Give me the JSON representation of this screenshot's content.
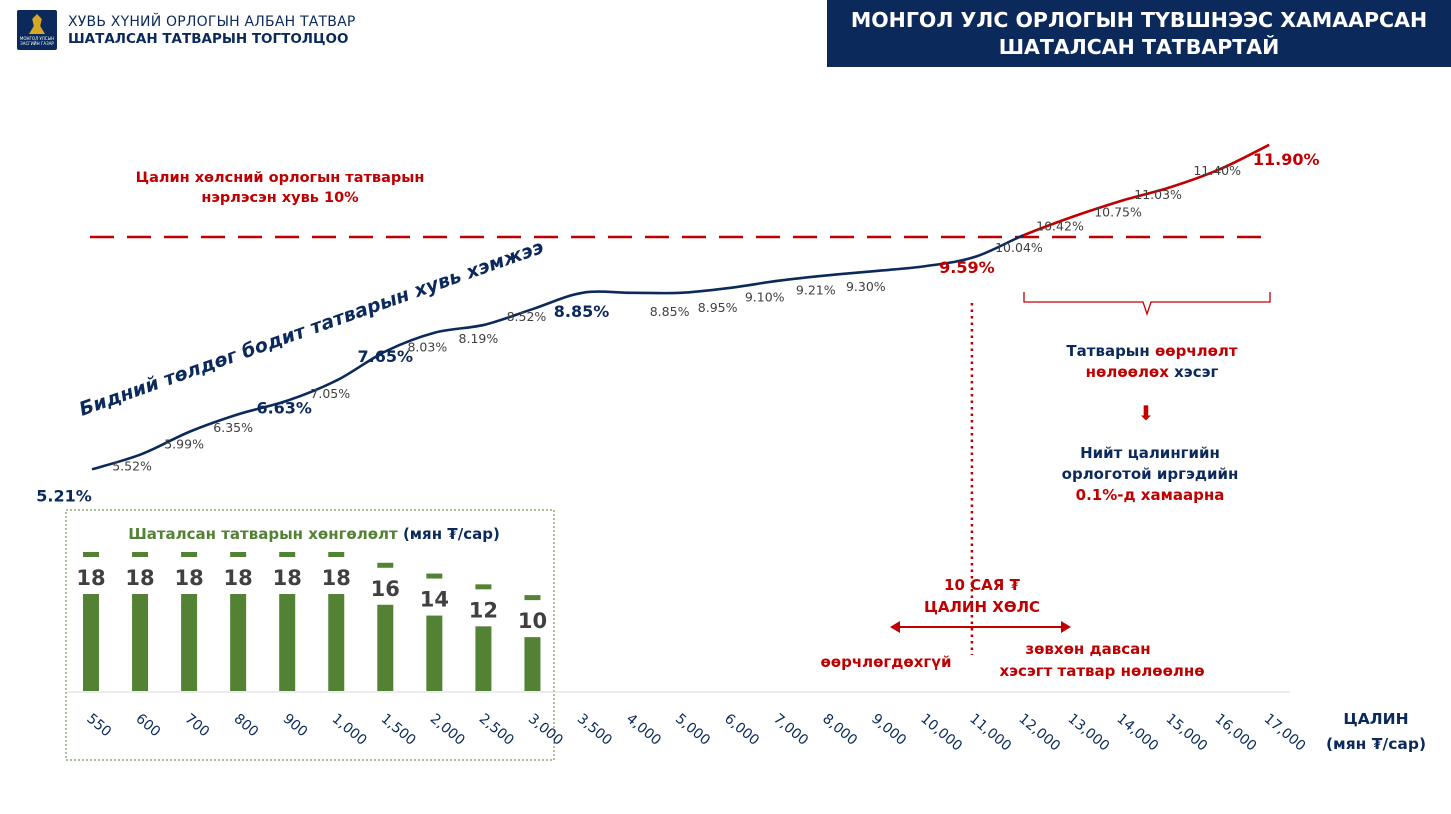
{
  "header": {
    "logo_text_line1": "МОНГОЛ УЛСЫН",
    "logo_text_line2": "ЗАСГИЙН ГАЗАР",
    "line1": "ХУВЬ ХҮНИЙ ОРЛОГЫН АЛБАН ТАТВАР",
    "line2": "ШАТАЛСАН ТАТВАРЫН ТОГТОЛЦОО"
  },
  "title": {
    "line1": "МОНГОЛ УЛС ОРЛОГЫН ТҮВШНЭЭС ХАМААРСАН",
    "line2": "ШАТАЛСАН ТАТВАРТАЙ"
  },
  "annotations": {
    "nominal_rate_line1": "Цалин хөлсний орлогын татварын",
    "nominal_rate_line2": "нэрлэсэн хувь 10%",
    "curve_label": "Бидний төлдөг бодит татварын хувь хэмжээ",
    "affected_part_line1_a": "Татварын ",
    "affected_part_line1_b": "өөрчлөлт",
    "affected_part_line2_a": "нөлөөлөх",
    "affected_part_line2_b": " хэсэг",
    "down_arrow": "⬇",
    "share_line1": "Нийт цалингийн",
    "share_line2": "орлоготой иргэдийн",
    "share_line3": "0.1%-д хамаарна",
    "threshold_line1": "10 САЯ ₮",
    "threshold_line2": "ЦАЛИН ХӨЛС",
    "left_of_threshold": "өөрчлөгдөхгүй",
    "right_of_threshold_line1": "зөвхөн давсан",
    "right_of_threshold_line2": "хэсэгт татвар нөлөөлнө"
  },
  "colors": {
    "navy": "#0b2a5b",
    "red": "#c00000",
    "green": "#548235",
    "gray_text": "#404040"
  },
  "chart_data": [
    {
      "type": "line",
      "xlabel": "ЦАЛИН",
      "xlabel_unit": "(мян ₮/сар)",
      "x": [
        "550",
        "600",
        "700",
        "800",
        "900",
        "1,000",
        "1,500",
        "2,000",
        "2,500",
        "3,000",
        "3,500",
        "4,000",
        "5,000",
        "6,000",
        "7,000",
        "8,000",
        "9,000",
        "10,000",
        "11,000",
        "12,000",
        "13,000",
        "14,000",
        "15,000",
        "16,000",
        "17,000"
      ],
      "series": [
        {
          "name": "Бидний төлдөг бодит татварын хувь хэмжээ",
          "values": [
            5.21,
            5.52,
            5.99,
            6.35,
            6.63,
            7.05,
            7.65,
            8.03,
            8.19,
            8.52,
            8.85,
            8.85,
            8.85,
            8.95,
            9.1,
            9.21,
            9.3,
            9.4,
            9.59,
            10.04,
            10.42,
            10.75,
            11.03,
            11.4,
            11.9
          ],
          "labels": [
            "5.21%",
            "5.52%",
            "5.99%",
            "6.35%",
            "6.63%",
            "7.05%",
            "7.65%",
            "8.03%",
            "8.19%",
            "8.52%",
            "8.85%",
            "",
            "8.85%",
            "8.95%",
            "9.10%",
            "9.21%",
            "9.30%",
            "",
            "9.59%",
            "10.04%",
            "10.42%",
            "10.75%",
            "11.03%",
            "11.40%",
            "11.90%"
          ]
        }
      ],
      "reference_line": {
        "value": 10
      },
      "threshold_x": "11,000"
    },
    {
      "type": "bar",
      "title_a": "Шаталсан татварын хөнгөлөлт",
      "title_b": " (мян ₮/сар)",
      "categories": [
        "550",
        "600",
        "700",
        "800",
        "900",
        "1,000",
        "1,500",
        "2,000",
        "2,500",
        "3,000"
      ],
      "values": [
        18,
        18,
        18,
        18,
        18,
        18,
        16,
        14,
        12,
        10
      ],
      "labels": [
        "18",
        "18",
        "18",
        "18",
        "18",
        "18",
        "16",
        "14",
        "12",
        "10"
      ],
      "ylim": [
        0,
        18
      ]
    }
  ]
}
